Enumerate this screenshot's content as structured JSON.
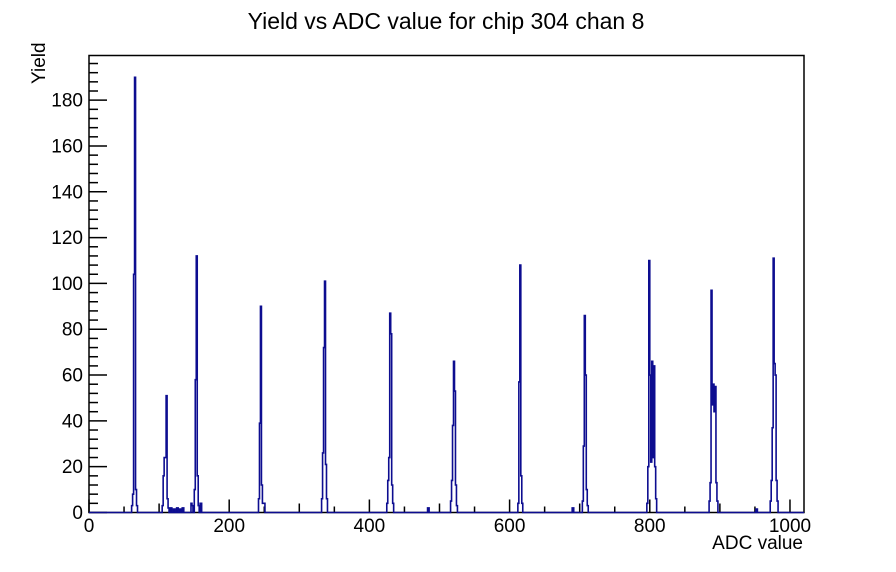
{
  "chart_data": {
    "type": "histogram",
    "title": "Yield vs ADC value for chip 304 chan 8",
    "xlabel": "ADC value",
    "ylabel": "Yield",
    "xlim": [
      0,
      1020
    ],
    "ylim": [
      0,
      199.5
    ],
    "grid": false,
    "legend": "none",
    "line_color": "#0d0d90",
    "frame_color": "#000000",
    "background_color": "#ffffff",
    "xticks_labeled": [
      0,
      200,
      400,
      600,
      800,
      1000
    ],
    "xtick_minor_step": 50,
    "xtick_medium_step": 100,
    "yticks_labeled": [
      0,
      20,
      40,
      60,
      80,
      100,
      120,
      140,
      160,
      180
    ],
    "ytick_minor_step": 4,
    "peaks": [
      {
        "adc": 65,
        "yield": 190
      },
      {
        "adc": 110,
        "yield": 51
      },
      {
        "adc": 153,
        "yield": 112
      },
      {
        "adc": 245,
        "yield": 90
      },
      {
        "adc": 336,
        "yield": 101
      },
      {
        "adc": 429,
        "yield": 87
      },
      {
        "adc": 520,
        "yield": 66
      },
      {
        "adc": 615,
        "yield": 108
      },
      {
        "adc": 707,
        "yield": 86
      },
      {
        "adc": 799,
        "yield": 110
      },
      {
        "adc": 887,
        "yield": 97
      },
      {
        "adc": 976,
        "yield": 111
      }
    ],
    "bins": [
      [
        60.8,
        1.4,
        3
      ],
      [
        62.2,
        1.4,
        8
      ],
      [
        63.6,
        1.4,
        104
      ],
      [
        65,
        1.4,
        190
      ],
      [
        66.4,
        1.4,
        10
      ],
      [
        67.8,
        1.4,
        3
      ],
      [
        104.4,
        1.4,
        3
      ],
      [
        105.8,
        1.4,
        16
      ],
      [
        107.2,
        1.4,
        24
      ],
      [
        108.6,
        1.4,
        24
      ],
      [
        110,
        1.4,
        51
      ],
      [
        111.4,
        1.4,
        6
      ],
      [
        112.8,
        1.4,
        2
      ],
      [
        116,
        2.2,
        2
      ],
      [
        120.5,
        2.2,
        1.5
      ],
      [
        125,
        2.2,
        2
      ],
      [
        129.5,
        2.2,
        1.5
      ],
      [
        133,
        2.2,
        2
      ],
      [
        145.5,
        1.4,
        4
      ],
      [
        146.9,
        1.4,
        3
      ],
      [
        150.2,
        1.4,
        10
      ],
      [
        151.6,
        1.4,
        58
      ],
      [
        153,
        1.4,
        112
      ],
      [
        154.4,
        1.4,
        16
      ],
      [
        155.8,
        1.4,
        3
      ],
      [
        158.5,
        2.2,
        4
      ],
      [
        241.8,
        1.4,
        6
      ],
      [
        243.2,
        1.4,
        39
      ],
      [
        244.6,
        1.4,
        90
      ],
      [
        246,
        1.4,
        12
      ],
      [
        247.4,
        1.4,
        4
      ],
      [
        248.8,
        2.2,
        4
      ],
      [
        331.8,
        1.4,
        6
      ],
      [
        333.2,
        1.4,
        26
      ],
      [
        334.6,
        1.4,
        72
      ],
      [
        336,
        1.4,
        101
      ],
      [
        337.4,
        1.4,
        21
      ],
      [
        338.8,
        1.4,
        6
      ],
      [
        424.8,
        1.4,
        4
      ],
      [
        426.2,
        1.4,
        14
      ],
      [
        427.6,
        1.4,
        24
      ],
      [
        429,
        1.4,
        87
      ],
      [
        430.4,
        1.4,
        78
      ],
      [
        431.8,
        1.4,
        12
      ],
      [
        433.2,
        1.4,
        4
      ],
      [
        483,
        2.2,
        2
      ],
      [
        515.8,
        1.4,
        5
      ],
      [
        517.2,
        1.4,
        14
      ],
      [
        518.6,
        1.4,
        38
      ],
      [
        520,
        1.4,
        66
      ],
      [
        521.4,
        1.4,
        53
      ],
      [
        522.8,
        1.4,
        12
      ],
      [
        524.2,
        1.4,
        3
      ],
      [
        611.8,
        1.4,
        4
      ],
      [
        613.2,
        1.4,
        57
      ],
      [
        614.6,
        1.4,
        108
      ],
      [
        616,
        1.4,
        16
      ],
      [
        617.4,
        1.4,
        4
      ],
      [
        689.3,
        2.2,
        2
      ],
      [
        703.8,
        1.4,
        5
      ],
      [
        705.2,
        1.4,
        29
      ],
      [
        706.6,
        1.4,
        86
      ],
      [
        708,
        1.4,
        60
      ],
      [
        709.4,
        1.4,
        10
      ],
      [
        710.8,
        1.4,
        3
      ],
      [
        795.8,
        1.4,
        4
      ],
      [
        797.2,
        1.4,
        20
      ],
      [
        798.6,
        1.4,
        110
      ],
      [
        800,
        1.4,
        60
      ],
      [
        801.4,
        1.4,
        22
      ],
      [
        802.8,
        1.4,
        66
      ],
      [
        804.2,
        1.4,
        24
      ],
      [
        805.6,
        1.4,
        64
      ],
      [
        807,
        1.4,
        20
      ],
      [
        808.4,
        1.4,
        6
      ],
      [
        884.6,
        1.4,
        5
      ],
      [
        886,
        1.4,
        13
      ],
      [
        887.4,
        1.4,
        97
      ],
      [
        888.8,
        1.4,
        47
      ],
      [
        890.2,
        1.4,
        56
      ],
      [
        891.6,
        1.4,
        44
      ],
      [
        893,
        1.4,
        55
      ],
      [
        894.4,
        1.4,
        13
      ],
      [
        895.8,
        1.4,
        5
      ],
      [
        951.3,
        2.2,
        1.5
      ],
      [
        971.8,
        1.4,
        5
      ],
      [
        973.2,
        1.4,
        14
      ],
      [
        974.6,
        1.4,
        37
      ],
      [
        976,
        1.4,
        111
      ],
      [
        977.4,
        1.4,
        65
      ],
      [
        978.8,
        1.4,
        60
      ],
      [
        980.2,
        1.4,
        14
      ],
      [
        981.6,
        1.4,
        5
      ]
    ]
  }
}
